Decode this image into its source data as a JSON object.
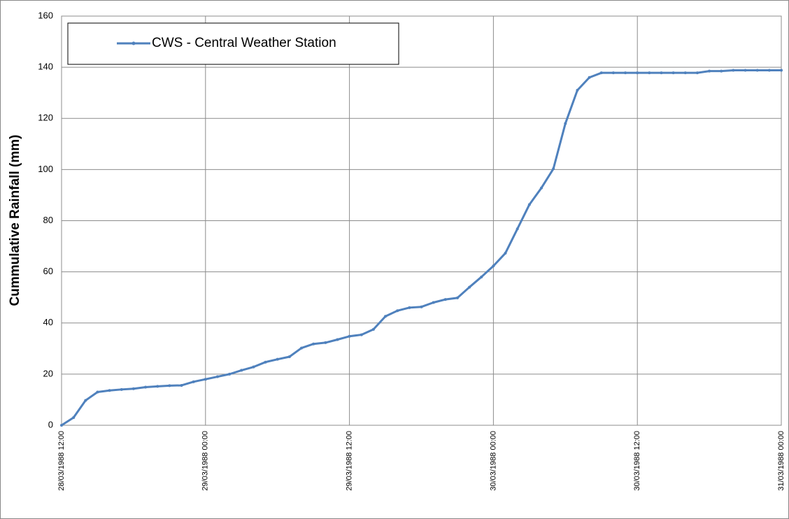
{
  "chart_data": {
    "type": "line",
    "y_label": "Cummulative Rainfall (mm)",
    "x": [
      "28/03/1988 12:00",
      "28/03/1988 13:00",
      "28/03/1988 14:00",
      "28/03/1988 15:00",
      "28/03/1988 16:00",
      "28/03/1988 17:00",
      "28/03/1988 18:00",
      "28/03/1988 19:00",
      "28/03/1988 20:00",
      "28/03/1988 21:00",
      "28/03/1988 22:00",
      "28/03/1988 23:00",
      "29/03/1988 00:00",
      "29/03/1988 01:00",
      "29/03/1988 02:00",
      "29/03/1988 03:00",
      "29/03/1988 04:00",
      "29/03/1988 05:00",
      "29/03/1988 06:00",
      "29/03/1988 07:00",
      "29/03/1988 08:00",
      "29/03/1988 09:00",
      "29/03/1988 10:00",
      "29/03/1988 11:00",
      "29/03/1988 12:00",
      "29/03/1988 13:00",
      "29/03/1988 14:00",
      "29/03/1988 15:00",
      "29/03/1988 16:00",
      "29/03/1988 17:00",
      "29/03/1988 18:00",
      "29/03/1988 19:00",
      "29/03/1988 20:00",
      "29/03/1988 21:00",
      "29/03/1988 22:00",
      "29/03/1988 23:00",
      "30/03/1988 00:00",
      "30/03/1988 01:00",
      "30/03/1988 02:00",
      "30/03/1988 03:00",
      "30/03/1988 04:00",
      "30/03/1988 05:00",
      "30/03/1988 06:00",
      "30/03/1988 07:00",
      "30/03/1988 08:00",
      "30/03/1988 09:00",
      "30/03/1988 10:00",
      "30/03/1988 11:00",
      "30/03/1988 12:00",
      "30/03/1988 13:00",
      "30/03/1988 14:00",
      "30/03/1988 15:00",
      "30/03/1988 16:00",
      "30/03/1988 17:00",
      "30/03/1988 18:00",
      "30/03/1988 19:00",
      "30/03/1988 20:00",
      "30/03/1988 21:00",
      "30/03/1988 22:00",
      "30/03/1988 23:00",
      "31/03/1988 00:00"
    ],
    "series": [
      {
        "name": "CWS - Central Weather Station",
        "color": "#4f81bd",
        "values": [
          0,
          3,
          9.7,
          13,
          13.6,
          14,
          14.3,
          14.9,
          15.2,
          15.5,
          15.6,
          17,
          18,
          19,
          20,
          21.5,
          22.8,
          24.7,
          25.8,
          26.8,
          30.2,
          31.8,
          32.3,
          33.5,
          34.8,
          35.4,
          37.5,
          42.6,
          44.8,
          46,
          46.3,
          48,
          49.2,
          49.8,
          54,
          58,
          62.3,
          67.3,
          76.8,
          86.3,
          92.8,
          100.3,
          118,
          131,
          136,
          137.8,
          137.8,
          137.8,
          137.8,
          137.8,
          137.8,
          137.8,
          137.8,
          137.8,
          138.5,
          138.5,
          138.8,
          138.8,
          138.8,
          138.8,
          138.8
        ]
      }
    ],
    "xlim": [
      "28/03/1988 12:00",
      "31/03/1988 00:00"
    ],
    "xticks": [
      "28/03/1988 12:00",
      "29/03/1988 00:00",
      "29/03/1988 12:00",
      "30/03/1988 00:00",
      "30/03/1988 12:00",
      "31/03/1988 00:00"
    ],
    "ylim": [
      0,
      160
    ],
    "yticks": [
      0,
      20,
      40,
      60,
      80,
      100,
      120,
      140,
      160
    ],
    "grid": true,
    "legend": "upper left"
  }
}
